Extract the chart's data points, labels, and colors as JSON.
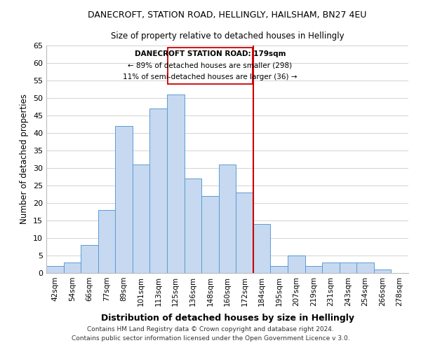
{
  "title": "DANECROFT, STATION ROAD, HELLINGLY, HAILSHAM, BN27 4EU",
  "subtitle": "Size of property relative to detached houses in Hellingly",
  "xlabel": "Distribution of detached houses by size in Hellingly",
  "ylabel": "Number of detached properties",
  "footer_line1": "Contains HM Land Registry data © Crown copyright and database right 2024.",
  "footer_line2": "Contains public sector information licensed under the Open Government Licence v 3.0.",
  "bin_labels": [
    "42sqm",
    "54sqm",
    "66sqm",
    "77sqm",
    "89sqm",
    "101sqm",
    "113sqm",
    "125sqm",
    "136sqm",
    "148sqm",
    "160sqm",
    "172sqm",
    "184sqm",
    "195sqm",
    "207sqm",
    "219sqm",
    "231sqm",
    "243sqm",
    "254sqm",
    "266sqm",
    "278sqm"
  ],
  "bin_values": [
    2,
    3,
    8,
    18,
    42,
    31,
    47,
    51,
    27,
    22,
    31,
    23,
    14,
    2,
    5,
    2,
    3,
    3,
    3,
    1,
    0
  ],
  "bar_color": "#c6d9f0",
  "bar_edge_color": "#5b9bd5",
  "marker_color": "#cc0000",
  "annotation_title": "DANECROFT STATION ROAD: 179sqm",
  "annotation_line1": "← 89% of detached houses are smaller (298)",
  "annotation_line2": "11% of semi-detached houses are larger (36) →",
  "ylim": [
    0,
    65
  ],
  "yticks": [
    0,
    5,
    10,
    15,
    20,
    25,
    30,
    35,
    40,
    45,
    50,
    55,
    60,
    65
  ],
  "background_color": "#ffffff",
  "grid_color": "#cccccc"
}
